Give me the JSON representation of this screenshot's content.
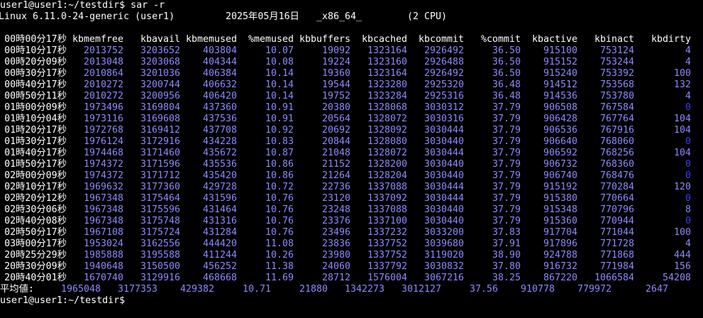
{
  "terminal": {
    "prompt_command": "user1@user1:~/testdir$ sar -r",
    "system_info": {
      "kernel": "Linux 6.11.0-24-generic (user1)",
      "date": "2025年05月16日",
      "arch": "_x86_64_",
      "cpus": "(2 CPU)"
    },
    "table": {
      "header_time": "00時00分17秒",
      "columns": [
        "kbmemfree",
        "kbavail",
        "kbmemused",
        "%memused",
        "kbbuffers",
        "kbcached",
        "kbcommit",
        "%commit",
        "kbactive",
        "kbinact",
        "kbdirty"
      ],
      "rows": [
        [
          "00時10分17秒",
          "2013752",
          "3203652",
          "403804",
          "10.07",
          "19092",
          "1323164",
          "2926492",
          "36.50",
          "915100",
          "753124",
          "4"
        ],
        [
          "00時20分09秒",
          "2013048",
          "3203068",
          "404344",
          "10.08",
          "19224",
          "1323160",
          "2926488",
          "36.50",
          "915152",
          "753244",
          "4"
        ],
        [
          "00時30分17秒",
          "2010864",
          "3201036",
          "406384",
          "10.14",
          "19360",
          "1323164",
          "2926492",
          "36.50",
          "915240",
          "753392",
          "100"
        ],
        [
          "00時40分17秒",
          "2010272",
          "3200744",
          "406632",
          "10.14",
          "19544",
          "1323280",
          "2925320",
          "36.48",
          "914512",
          "753568",
          "132"
        ],
        [
          "00時50分11秒",
          "2010272",
          "3200956",
          "406420",
          "10.14",
          "19752",
          "1323284",
          "2925316",
          "36.48",
          "914536",
          "753780",
          "4"
        ],
        [
          "01時00分09秒",
          "1973496",
          "3169804",
          "437360",
          "10.91",
          "20380",
          "1328068",
          "3030312",
          "37.79",
          "906508",
          "767584",
          "0"
        ],
        [
          "01時10分04秒",
          "1973116",
          "3169608",
          "437536",
          "10.91",
          "20564",
          "1328072",
          "3030316",
          "37.79",
          "906428",
          "767764",
          "104"
        ],
        [
          "01時20分17秒",
          "1972768",
          "3169412",
          "437708",
          "10.92",
          "20692",
          "1328092",
          "3030444",
          "37.79",
          "906536",
          "767916",
          "104"
        ],
        [
          "01時30分17秒",
          "1976124",
          "3172916",
          "434228",
          "10.83",
          "20844",
          "1328080",
          "3030440",
          "37.79",
          "906640",
          "768060",
          "0"
        ],
        [
          "01時40分17秒",
          "1974468",
          "3171460",
          "435672",
          "10.87",
          "21048",
          "1328072",
          "3030444",
          "37.79",
          "906592",
          "768256",
          "104"
        ],
        [
          "01時50分17秒",
          "1974372",
          "3171596",
          "435536",
          "10.86",
          "21152",
          "1328200",
          "3030440",
          "37.79",
          "906732",
          "768360",
          "0"
        ],
        [
          "02時00分09秒",
          "1974372",
          "3171712",
          "435420",
          "10.86",
          "21264",
          "1328204",
          "3030440",
          "37.79",
          "906740",
          "768476",
          "0"
        ],
        [
          "02時10分17秒",
          "1969632",
          "3177360",
          "429728",
          "10.72",
          "22736",
          "1337088",
          "3030444",
          "37.79",
          "915192",
          "770284",
          "120"
        ],
        [
          "02時20分12秒",
          "1967348",
          "3175464",
          "431596",
          "10.76",
          "23120",
          "1337092",
          "3030444",
          "37.79",
          "915380",
          "770664",
          "0"
        ],
        [
          "02時30分06秒",
          "1967348",
          "3175596",
          "431464",
          "10.76",
          "23248",
          "1337088",
          "3030440",
          "37.79",
          "915348",
          "770796",
          "8"
        ],
        [
          "02時40分08秒",
          "1967348",
          "3175748",
          "431316",
          "10.76",
          "23376",
          "1337100",
          "3030440",
          "37.79",
          "915360",
          "770944",
          "0"
        ],
        [
          "02時50分17秒",
          "1967108",
          "3175724",
          "431284",
          "10.76",
          "23496",
          "1337232",
          "3033200",
          "37.83",
          "917704",
          "771044",
          "100"
        ],
        [
          "03時00分17秒",
          "1953024",
          "3162556",
          "444420",
          "11.08",
          "23836",
          "1337752",
          "3039680",
          "37.91",
          "917896",
          "771728",
          "4"
        ],
        [
          "20時25分29秒",
          "1985888",
          "3195588",
          "411244",
          "10.26",
          "23980",
          "1337752",
          "3119020",
          "38.90",
          "924788",
          "771868",
          "444"
        ],
        [
          "20時30分09秒",
          "1940648",
          "3150500",
          "456252",
          "11.38",
          "24060",
          "1337792",
          "3030832",
          "37.80",
          "916732",
          "771984",
          "156"
        ],
        [
          "20時40分01秒",
          "1670740",
          "3129916",
          "468668",
          "11.69",
          "28712",
          "1576004",
          "3067216",
          "38.25",
          "867220",
          "1066584",
          "54208"
        ]
      ],
      "average": {
        "label": "平均値:",
        "values": [
          "1965048",
          "3177353",
          "429382",
          "10.71",
          "21880",
          "1342273",
          "3012127",
          "37.56",
          "910778",
          "779972",
          "2647"
        ]
      }
    },
    "next_prompt": "user1@user1:~/testdir$"
  },
  "colors": {
    "background": "#000000",
    "text": "#ffffff",
    "number": "#8a8aff",
    "zero": "#3c3cff"
  }
}
